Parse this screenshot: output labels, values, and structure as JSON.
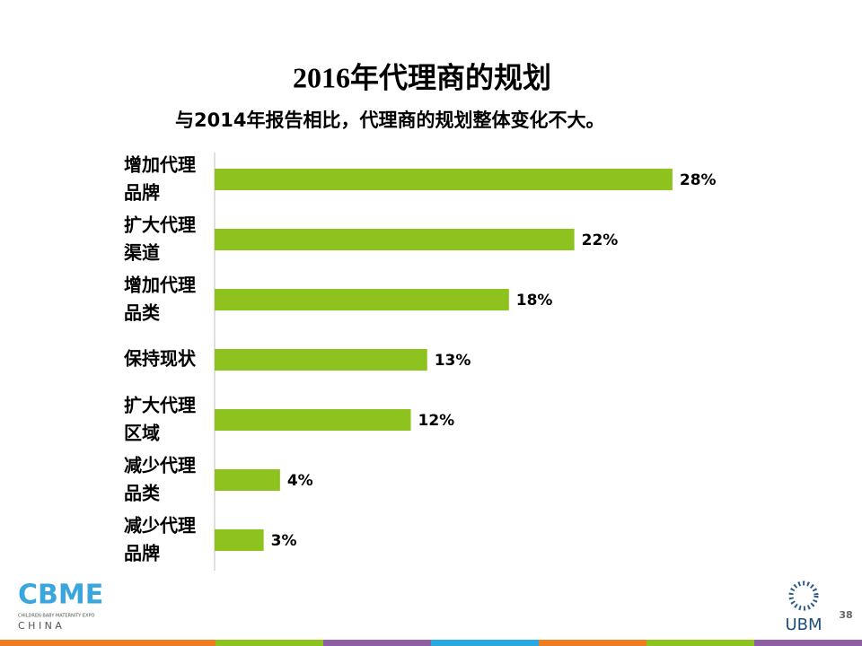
{
  "chart_data": {
    "type": "bar",
    "orientation": "horizontal",
    "title": "2016年代理商的规划",
    "subtitle": "与2014年报告相比，代理商的规划整体变化不大。",
    "categories": [
      "增加代理品牌",
      "扩大代理渠道",
      "增加代理品类",
      "保持现状",
      "扩大代理区域",
      "减少代理品类",
      "减少代理品牌"
    ],
    "values": [
      28,
      22,
      18,
      13,
      12,
      4,
      3
    ],
    "value_labels": [
      "28%",
      "22%",
      "18%",
      "13%",
      "12%",
      "4%",
      "3%"
    ],
    "color": "#8dc21f",
    "grid": false
  },
  "slide": {
    "page_number": "38",
    "logo_left": "CBME",
    "logo_left_tagline": "CHILDREN·BABY·MATERNITY EXPO",
    "logo_left_sub": "C H I N A",
    "logo_right": "UBM"
  }
}
